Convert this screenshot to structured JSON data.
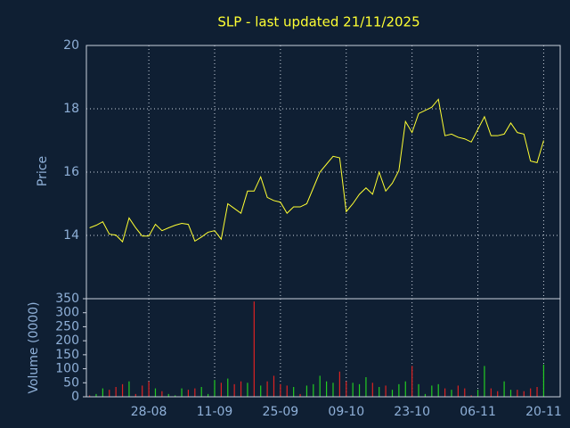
{
  "chart_data": [
    {
      "type": "line",
      "title": "SLP - last updated 21/11/2025",
      "y_label": "Price",
      "color": "#ffff33",
      "values": [
        14.24,
        14.32,
        14.43,
        14.04,
        14.01,
        13.8,
        14.55,
        14.24,
        13.98,
        13.98,
        14.35,
        14.15,
        14.24,
        14.32,
        14.38,
        14.35,
        13.82,
        13.95,
        14.1,
        14.15,
        13.88,
        15.0,
        14.85,
        14.7,
        15.4,
        15.4,
        15.85,
        15.2,
        15.1,
        15.05,
        14.7,
        14.9,
        14.9,
        15.0,
        15.5,
        16.0,
        16.25,
        16.5,
        16.45,
        14.75,
        15.0,
        15.3,
        15.5,
        15.3,
        16.0,
        15.4,
        15.65,
        16.05,
        17.6,
        17.25,
        17.85,
        17.95,
        18.05,
        18.3,
        17.15,
        17.2,
        17.1,
        17.05,
        16.95,
        17.35,
        17.75,
        17.15,
        17.15,
        17.2,
        17.55,
        17.25,
        17.2,
        16.35,
        16.3,
        17.0
      ],
      "ylim": [
        12,
        20
      ],
      "yticks": [
        14,
        16,
        18,
        20
      ],
      "grid": true
    },
    {
      "type": "bar",
      "y_label": "Volume (0000)",
      "up_color": "#22cc22",
      "down_color": "#dd2222",
      "categories": [
        null,
        null,
        null,
        null,
        null,
        null,
        null,
        null,
        null,
        "28-08",
        null,
        null,
        null,
        null,
        null,
        null,
        null,
        null,
        null,
        "11-09",
        null,
        null,
        null,
        null,
        null,
        null,
        null,
        null,
        null,
        "25-09",
        null,
        null,
        null,
        null,
        null,
        null,
        null,
        null,
        null,
        "09-10",
        null,
        null,
        null,
        null,
        null,
        null,
        null,
        null,
        null,
        "23-10",
        null,
        null,
        null,
        null,
        null,
        null,
        null,
        null,
        null,
        "06-11",
        null,
        null,
        null,
        null,
        null,
        null,
        null,
        null,
        null,
        "20-11"
      ],
      "values": [
        5,
        10,
        30,
        25,
        35,
        45,
        55,
        10,
        40,
        55,
        30,
        20,
        10,
        5,
        30,
        25,
        30,
        35,
        10,
        60,
        50,
        65,
        45,
        55,
        50,
        340,
        40,
        55,
        75,
        45,
        40,
        35,
        10,
        40,
        45,
        75,
        55,
        50,
        90,
        55,
        50,
        45,
        70,
        50,
        35,
        40,
        25,
        45,
        55,
        110,
        45,
        10,
        40,
        45,
        30,
        25,
        40,
        30,
        5,
        25,
        110,
        30,
        20,
        55,
        25,
        25,
        20,
        30,
        35,
        115
      ],
      "ylim": [
        0,
        350
      ],
      "yticks": [
        0,
        50,
        100,
        150,
        200,
        250,
        300,
        350
      ],
      "grid": true
    }
  ]
}
